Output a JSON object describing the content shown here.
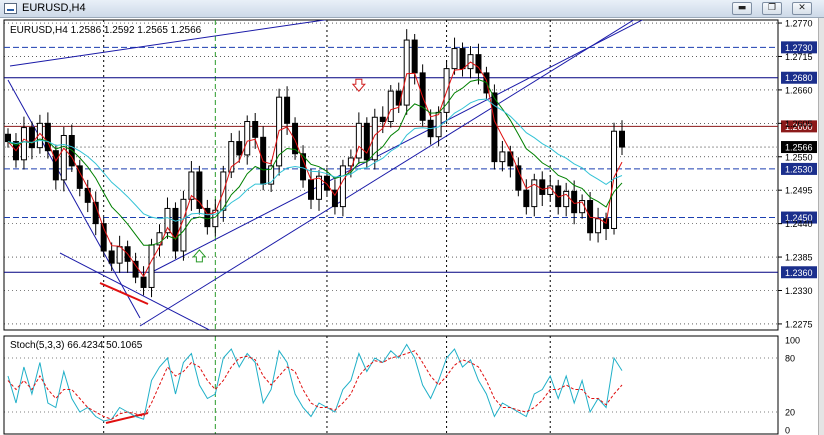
{
  "window": {
    "title": "EURUSD,H4",
    "buttons": {
      "minimize": "▬",
      "restore": "❐",
      "close": "✕"
    }
  },
  "chart_data": [
    {
      "type": "candlestick",
      "symbol": "EURUSD",
      "timeframe": "H4",
      "info": "EURUSD,H4  1.2586 1.2592 1.2565 1.2566",
      "ylim": [
        1.2265,
        1.2775
      ],
      "ticks": [
        "1.2770",
        "1.2715",
        "1.2660",
        "1.2605",
        "1.2550",
        "1.2495",
        "1.2440",
        "1.2385",
        "1.2330",
        "1.2275"
      ],
      "tick_values": [
        1.277,
        1.2715,
        1.266,
        1.2605,
        1.255,
        1.2495,
        1.244,
        1.2385,
        1.233,
        1.2275
      ],
      "last_price": {
        "value": 1.2566,
        "label": "1.2566"
      },
      "levels": [
        {
          "value": 1.273,
          "label": "1.2730",
          "style": "dash",
          "color": "#1c3fb0"
        },
        {
          "value": 1.268,
          "label": "1.2680",
          "style": "solid",
          "color": "#000080"
        },
        {
          "value": 1.26,
          "label": "1.2600",
          "style": "solid",
          "color": "#8b1a1a"
        },
        {
          "value": 1.253,
          "label": "1.2530",
          "style": "dash",
          "color": "#1c3fb0"
        },
        {
          "value": 1.245,
          "label": "1.2450",
          "style": "dash",
          "color": "#1c3fb0"
        },
        {
          "value": 1.236,
          "label": "1.2360",
          "style": "solid",
          "color": "#000080"
        }
      ],
      "closes": [
        1.2575,
        1.2545,
        1.2598,
        1.2565,
        1.2605,
        1.256,
        1.2512,
        1.2585,
        1.2535,
        1.2498,
        1.2475,
        1.244,
        1.2395,
        1.2375,
        1.2402,
        1.2378,
        1.2352,
        1.2335,
        1.2405,
        1.2425,
        1.2465,
        1.2395,
        1.248,
        1.2525,
        1.2465,
        1.2435,
        1.2462,
        1.2525,
        1.2575,
        1.2553,
        1.2608,
        1.2582,
        1.2505,
        1.2535,
        1.2648,
        1.2605,
        1.2555,
        1.2512,
        1.248,
        1.2518,
        1.2495,
        1.2468,
        1.2535,
        1.2548,
        1.2605,
        1.2545,
        1.2615,
        1.2608,
        1.2658,
        1.2635,
        1.2742,
        1.2688,
        1.261,
        1.2583,
        1.2623,
        1.2695,
        1.2728,
        1.2695,
        1.2718,
        1.2688,
        1.2655,
        1.2542,
        1.2558,
        1.2535,
        1.2495,
        1.2468,
        1.2512,
        1.2488,
        1.2502,
        1.2468,
        1.2493,
        1.2458,
        1.2478,
        1.2425,
        1.2448,
        1.2432,
        1.2592,
        1.2566
      ],
      "moving_averages": [
        {
          "name": "MA fast",
          "color": "#e01010"
        },
        {
          "name": "MA medium",
          "color": "#008000"
        },
        {
          "name": "MA slow",
          "color": "#33c3d6"
        }
      ],
      "channels": [
        {
          "color": "#1a1aa8"
        }
      ],
      "signals": [
        {
          "type": "down-arrow",
          "bar": 44,
          "price": 1.2648
        },
        {
          "type": "up-arrow",
          "bar": 24,
          "price": 1.241
        }
      ],
      "time_separators": [
        {
          "bar": 26,
          "style": "green-dash"
        },
        {
          "bar": 12
        },
        {
          "bar": 40
        },
        {
          "bar": 55
        },
        {
          "bar": 68
        }
      ]
    },
    {
      "type": "line",
      "name": "Stoch(5,3,3)",
      "info": "Stoch(5,3,3) 66.4234 50.1065",
      "ylim": [
        0,
        100
      ],
      "ticks": [
        "100",
        "80",
        "20",
        "0"
      ],
      "tick_values": [
        100,
        80,
        20,
        0
      ],
      "series": [
        {
          "name": "main",
          "color": "#20b0c8",
          "values": [
            60,
            30,
            70,
            40,
            75,
            30,
            25,
            65,
            35,
            20,
            25,
            15,
            10,
            12,
            25,
            20,
            15,
            12,
            55,
            70,
            80,
            40,
            75,
            85,
            50,
            35,
            40,
            80,
            90,
            70,
            85,
            75,
            30,
            45,
            88,
            75,
            40,
            25,
            15,
            30,
            25,
            20,
            45,
            55,
            85,
            65,
            80,
            75,
            88,
            80,
            95,
            80,
            50,
            35,
            55,
            80,
            90,
            70,
            78,
            55,
            40,
            15,
            30,
            25,
            20,
            15,
            40,
            45,
            60,
            35,
            60,
            30,
            55,
            20,
            35,
            25,
            80,
            66
          ]
        },
        {
          "name": "signal",
          "color": "#e01010",
          "values": [
            55,
            45,
            55,
            45,
            60,
            45,
            35,
            45,
            45,
            35,
            25,
            20,
            15,
            12,
            18,
            20,
            18,
            15,
            30,
            50,
            70,
            60,
            65,
            75,
            70,
            55,
            45,
            55,
            70,
            80,
            82,
            78,
            60,
            50,
            60,
            70,
            65,
            45,
            30,
            25,
            25,
            22,
            30,
            40,
            60,
            70,
            77,
            75,
            80,
            82,
            85,
            88,
            75,
            60,
            50,
            60,
            72,
            78,
            75,
            70,
            55,
            35,
            25,
            25,
            22,
            20,
            25,
            33,
            45,
            45,
            50,
            45,
            45,
            35,
            35,
            28,
            40,
            50
          ]
        }
      ]
    }
  ]
}
